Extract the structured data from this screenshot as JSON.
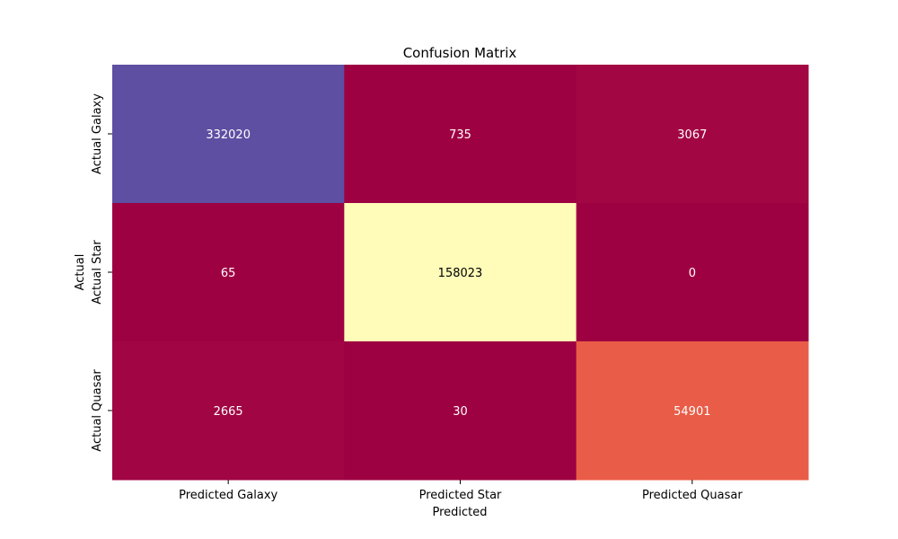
{
  "chart_data": {
    "type": "heatmap",
    "title": "Confusion Matrix",
    "xlabel": "Predicted",
    "ylabel": "Actual",
    "x_categories": [
      "Predicted Galaxy",
      "Predicted Star",
      "Predicted Quasar"
    ],
    "y_categories": [
      "Actual Galaxy",
      "Actual Star",
      "Actual Quasar"
    ],
    "values": [
      [
        332020,
        735,
        3067
      ],
      [
        65,
        158023,
        0
      ],
      [
        2665,
        30,
        54901
      ]
    ],
    "colormap": "Spectral",
    "colorbar": false,
    "cell_colors": [
      [
        "#5e4fa2",
        "#9e0142",
        "#a20643"
      ],
      [
        "#9e0142",
        "#fffbb8",
        "#9e0142"
      ],
      [
        "#a10543",
        "#9e0142",
        "#e95c47"
      ]
    ],
    "annotation_colors": [
      [
        "#ffffff",
        "#ffffff",
        "#ffffff"
      ],
      [
        "#ffffff",
        "#000000",
        "#ffffff"
      ],
      [
        "#ffffff",
        "#ffffff",
        "#ffffff"
      ]
    ]
  }
}
